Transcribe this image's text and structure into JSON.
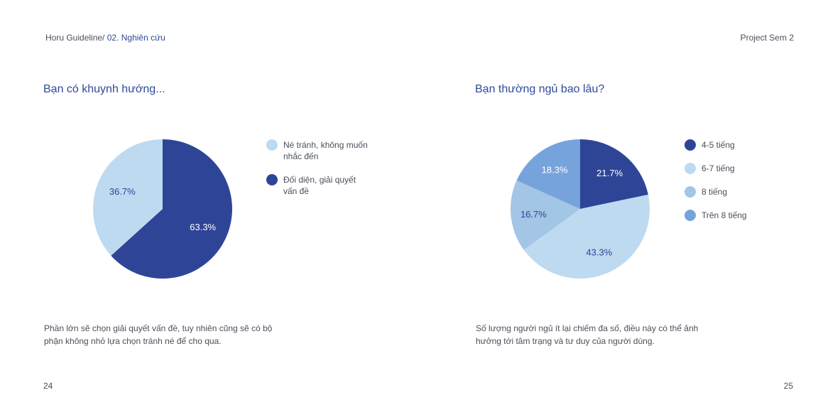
{
  "header": {
    "breadcrumb_root": "Horu Guideline/",
    "breadcrumb_current": "02. Nghiên cứu",
    "project": "Project Sem 2"
  },
  "left": {
    "title": "Bạn có khuynh hướng...",
    "caption_line1": "Phần lớn sẽ chọn giải quyết vấn đề, tuy nhiên cũng sẽ có bộ",
    "caption_line2": "phận không nhỏ lựa chọn tránh né để cho qua.",
    "page_number": "24"
  },
  "right": {
    "title": "Bạn thường ngủ bao lâu?",
    "caption_line1": "Số lượng người ngủ ít lại chiếm đa số, điều này có thể ảnh",
    "caption_line2": "hưởng tới tâm trạng và tư duy của người dùng.",
    "page_number": "25"
  },
  "chart_data": [
    {
      "type": "pie",
      "title": "Bạn có khuynh hướng...",
      "slices": [
        {
          "label": "Đối diện, giải quyết vấn đề",
          "value": 63.3,
          "display": "63.3%",
          "color": "#2e4597",
          "text_color": "#ffffff"
        },
        {
          "label": "Né tránh, không muốn nhắc đến",
          "value": 36.7,
          "display": "36.7%",
          "color": "#bedaf0",
          "text_color": "#2e4597"
        }
      ],
      "legend": [
        {
          "line1": "Né tránh, không muốn",
          "line2": "nhắc đến",
          "color": "#bedaf0"
        },
        {
          "line1": "Đối diện, giải quyết",
          "line2": "vấn đề",
          "color": "#2e4597"
        }
      ],
      "legend_position": "right"
    },
    {
      "type": "pie",
      "title": "Bạn thường ngủ bao lâu?",
      "slices": [
        {
          "label": "4-5 tiếng",
          "value": 21.7,
          "display": "21.7%",
          "color": "#2e4597",
          "text_color": "#ffffff"
        },
        {
          "label": "6-7 tiếng",
          "value": 43.3,
          "display": "43.3%",
          "color": "#bedaf0",
          "text_color": "#2e4597"
        },
        {
          "label": "8 tiếng",
          "value": 16.7,
          "display": "16.7%",
          "color": "#a3c5e6",
          "text_color": "#2e4597"
        },
        {
          "label": "Trên 8 tiếng",
          "value": 18.3,
          "display": "18.3%",
          "color": "#77a3dc",
          "text_color": "#ffffff"
        }
      ],
      "legend": [
        {
          "line1": "4-5 tiếng",
          "line2": "",
          "color": "#2e4597"
        },
        {
          "line1": "6-7 tiếng",
          "line2": "",
          "color": "#bedaf0"
        },
        {
          "line1": "8 tiếng",
          "line2": "",
          "color": "#a3c5e6"
        },
        {
          "line1": "Trên 8 tiếng",
          "line2": "",
          "color": "#77a3dc"
        }
      ],
      "legend_position": "right"
    }
  ]
}
